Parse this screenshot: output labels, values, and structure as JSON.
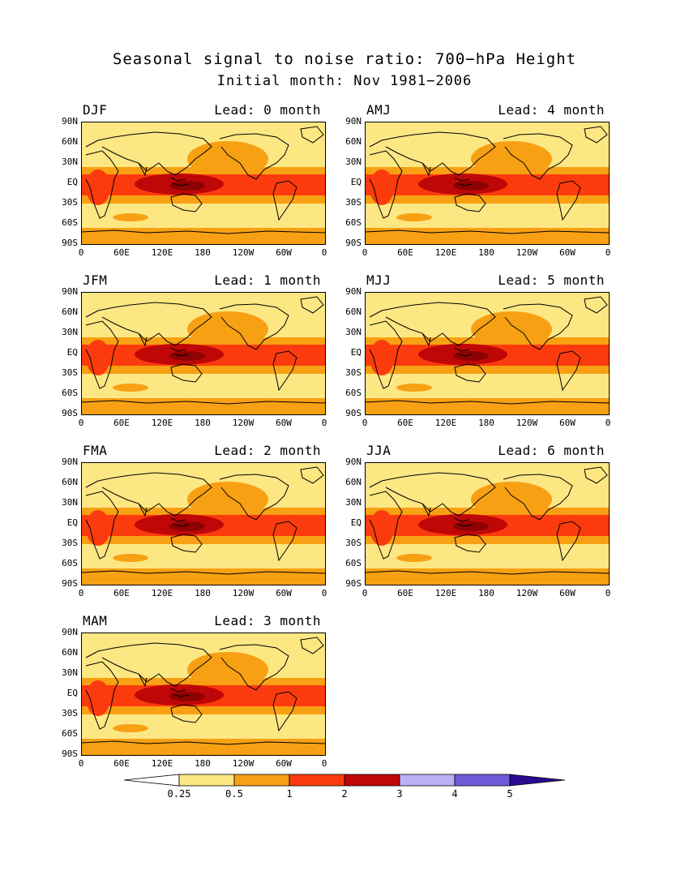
{
  "title": "Seasonal signal to noise ratio: 700−hPa Height",
  "subtitle": "Initial month: Nov 1981−2006",
  "colors": {
    "below_0_25": "#ffffff",
    "c0_25_0_5": "#fde783",
    "c0_5_1": "#f7a013",
    "c1_2": "#fb3b0e",
    "c2_3": "#c00707",
    "c3_4": "#bcb0f5",
    "c4_5": "#6f5ad8",
    "above_5": "#2a0a8e"
  },
  "lat_ticks": [
    "90N",
    "60N",
    "30N",
    "EQ",
    "30S",
    "60S",
    "90S"
  ],
  "lon_ticks": [
    "0",
    "60E",
    "120E",
    "180",
    "120W",
    "60W",
    "0"
  ],
  "panels": [
    {
      "season": "DJF",
      "lead": "Lead: 0 month"
    },
    {
      "season": "AMJ",
      "lead": "Lead: 4 month"
    },
    {
      "season": "JFM",
      "lead": "Lead: 1 month"
    },
    {
      "season": "MJJ",
      "lead": "Lead: 5 month"
    },
    {
      "season": "FMA",
      "lead": "Lead: 2 month"
    },
    {
      "season": "JJA",
      "lead": "Lead: 6 month"
    },
    {
      "season": "MAM",
      "lead": "Lead: 3 month"
    }
  ],
  "colorbar": {
    "labels": [
      "0.25",
      "0.5",
      "1",
      "2",
      "3",
      "4",
      "5"
    ]
  }
}
